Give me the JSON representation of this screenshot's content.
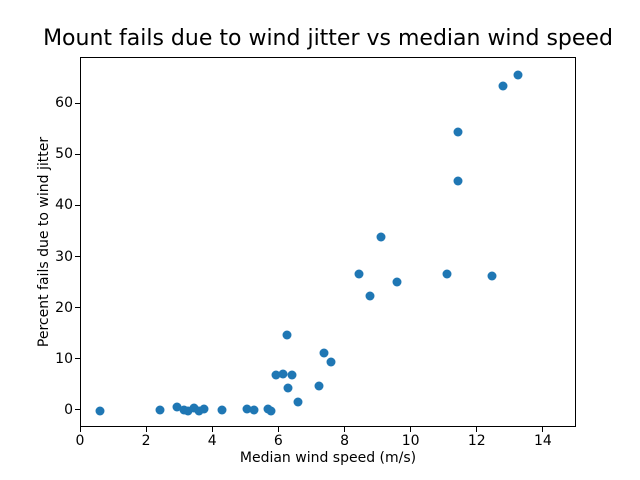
{
  "figure": {
    "background": "#ffffff",
    "text_color": "#000000",
    "axis_color": "#000000"
  },
  "chart_data": {
    "type": "scatter",
    "title": "Mount fails due to wind jitter vs median wind speed",
    "xlabel": "Median wind speed (m/s)",
    "ylabel": "Percent fails due to wind jitter",
    "xlim": [
      0,
      15
    ],
    "ylim": [
      -3.35,
      69.05
    ],
    "xticks": [
      0,
      2,
      4,
      6,
      8,
      10,
      12,
      14
    ],
    "yticks": [
      0,
      10,
      20,
      30,
      40,
      50,
      60
    ],
    "grid": false,
    "legend_position": "none",
    "marker_color": "#1f77b4",
    "points": [
      [
        0.57,
        0.0
      ],
      [
        2.4,
        0.2
      ],
      [
        2.9,
        0.8
      ],
      [
        3.1,
        0.1
      ],
      [
        3.23,
        0.0
      ],
      [
        3.41,
        0.5
      ],
      [
        3.56,
        0.0
      ],
      [
        3.73,
        0.3
      ],
      [
        4.27,
        0.1
      ],
      [
        5.02,
        0.4
      ],
      [
        5.22,
        0.1
      ],
      [
        5.67,
        0.4
      ],
      [
        5.76,
        0.0
      ],
      [
        5.91,
        7.1
      ],
      [
        6.11,
        7.2
      ],
      [
        6.23,
        14.8
      ],
      [
        6.25,
        4.5
      ],
      [
        6.38,
        7.0
      ],
      [
        6.55,
        1.8
      ],
      [
        7.2,
        4.9
      ],
      [
        7.34,
        11.3
      ],
      [
        7.56,
        9.5
      ],
      [
        8.42,
        26.8
      ],
      [
        8.75,
        22.5
      ],
      [
        9.08,
        34.1
      ],
      [
        9.57,
        25.3
      ],
      [
        11.06,
        26.7
      ],
      [
        11.41,
        45.0
      ],
      [
        11.41,
        54.5
      ],
      [
        12.42,
        26.3
      ],
      [
        12.76,
        63.6
      ],
      [
        13.23,
        65.8
      ]
    ]
  }
}
